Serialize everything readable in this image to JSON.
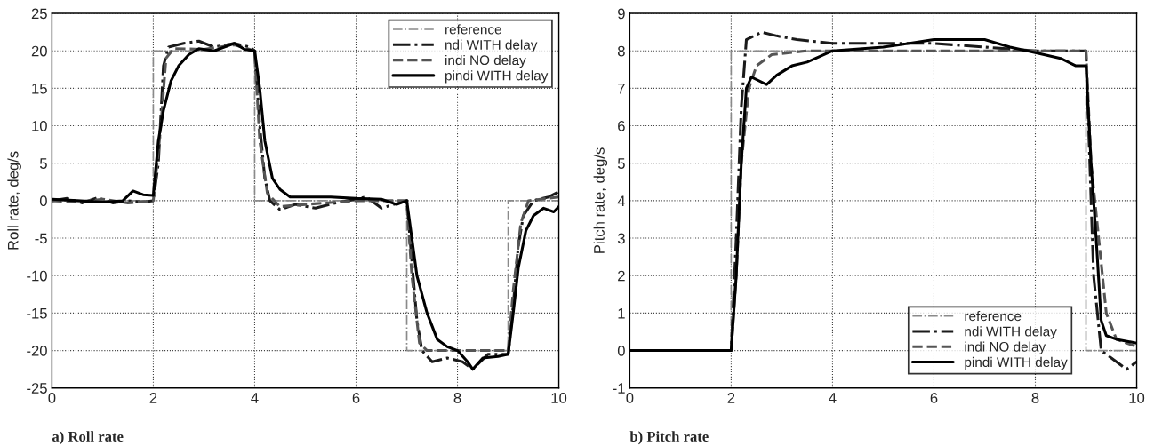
{
  "chart_data": [
    {
      "type": "line",
      "title": "a) Roll rate",
      "ylabel": "Roll rate, deg/s",
      "xlim": [
        0,
        10
      ],
      "ylim": [
        -25,
        25
      ],
      "xticks": [
        0,
        2,
        4,
        6,
        8,
        10
      ],
      "yticks": [
        -25,
        -20,
        -15,
        -10,
        -5,
        0,
        5,
        10,
        15,
        20,
        25
      ],
      "grid": true,
      "legend": "top right",
      "series": [
        {
          "name": "reference",
          "color": "#8a8a8a",
          "line_style": "dashdot",
          "x": [
            0,
            2,
            2,
            4,
            4,
            7,
            7,
            9,
            9,
            10
          ],
          "values": [
            0,
            0,
            20,
            20,
            0,
            0,
            -20,
            -20,
            0,
            0
          ]
        },
        {
          "name": "ndi WITH delay",
          "color": "#1a1a1a",
          "line_style": "dashdot",
          "x": [
            0,
            0.3,
            0.6,
            0.9,
            1.2,
            1.5,
            1.8,
            2.0,
            2.1,
            2.2,
            2.3,
            2.6,
            2.9,
            3.2,
            3.6,
            3.9,
            4.0,
            4.1,
            4.2,
            4.3,
            4.5,
            4.8,
            5.2,
            5.6,
            6.2,
            6.5,
            7.0,
            7.1,
            7.2,
            7.3,
            7.5,
            7.8,
            8.1,
            8.3,
            8.6,
            9.0,
            9.1,
            9.2,
            9.3,
            9.5,
            9.8,
            10
          ],
          "values": [
            0,
            0.3,
            -0.3,
            0.4,
            -0.3,
            0,
            -0.2,
            0,
            5,
            18,
            20.5,
            21,
            21.3,
            20.5,
            21,
            20.5,
            20,
            10,
            3,
            0,
            -1.2,
            -0.5,
            -1,
            -0.3,
            0.5,
            -1,
            0,
            -8,
            -16,
            -20,
            -21.5,
            -21,
            -21.5,
            -22.5,
            -20.5,
            -20.5,
            -14,
            -6,
            -2,
            0,
            0.5,
            1.2
          ]
        },
        {
          "name": "indi NO delay",
          "color": "#555555",
          "line_style": "dashed",
          "x": [
            0,
            0.5,
            1.0,
            1.5,
            2.0,
            2.15,
            2.25,
            2.4,
            3.0,
            3.6,
            4.0,
            4.1,
            4.25,
            4.5,
            5.0,
            6.0,
            7.0,
            7.1,
            7.25,
            7.4,
            8.0,
            9.0,
            9.1,
            9.25,
            9.4,
            10
          ],
          "values": [
            0,
            -0.2,
            0.2,
            -0.3,
            0,
            10,
            19,
            20.3,
            20.2,
            20.8,
            20,
            8,
            1,
            -0.8,
            -0.5,
            0,
            0,
            -10,
            -19,
            -20,
            -20,
            -20,
            -12,
            -3,
            0,
            0.5
          ]
        },
        {
          "name": "pindi WITH delay",
          "color": "#000000",
          "line_style": "solid",
          "x": [
            0,
            0.5,
            1.0,
            1.4,
            1.6,
            1.8,
            2.0,
            2.1,
            2.2,
            2.35,
            2.5,
            2.7,
            2.9,
            3.2,
            3.6,
            3.8,
            4.0,
            4.1,
            4.2,
            4.35,
            4.5,
            4.7,
            5.0,
            5.5,
            6.0,
            6.5,
            6.8,
            7.0,
            7.1,
            7.2,
            7.4,
            7.6,
            7.8,
            8.0,
            8.2,
            8.3,
            8.5,
            8.8,
            9.0,
            9.1,
            9.2,
            9.35,
            9.5,
            9.7,
            9.9,
            10
          ],
          "values": [
            0.2,
            0,
            -0.2,
            0,
            1.3,
            0.8,
            0.7,
            8,
            12,
            16,
            18,
            19.5,
            20.3,
            20,
            21,
            20.2,
            20,
            15,
            8,
            3,
            1.5,
            0.5,
            0.5,
            0.5,
            0.3,
            0.2,
            -0.5,
            0,
            -5,
            -10,
            -15,
            -18.5,
            -19.5,
            -20,
            -21.5,
            -22.5,
            -21,
            -20.8,
            -20.5,
            -15,
            -9,
            -4,
            -2,
            -1,
            -1.5,
            -0.8
          ]
        }
      ]
    },
    {
      "type": "line",
      "title": "b) Pitch rate",
      "ylabel": "Pitch rate, deg/s",
      "xlim": [
        0,
        10
      ],
      "ylim": [
        -1,
        9
      ],
      "xticks": [
        0,
        2,
        4,
        6,
        8,
        10
      ],
      "yticks": [
        -1,
        0,
        1,
        2,
        3,
        4,
        5,
        6,
        7,
        8,
        9
      ],
      "grid": true,
      "legend": "bottom right",
      "series": [
        {
          "name": "reference",
          "color": "#8a8a8a",
          "line_style": "dashdot",
          "x": [
            0,
            2,
            2,
            9,
            9,
            10
          ],
          "values": [
            0,
            0,
            8,
            8,
            0,
            0
          ]
        },
        {
          "name": "ndi WITH delay",
          "color": "#1a1a1a",
          "line_style": "dashdot",
          "x": [
            0,
            1,
            2,
            2.1,
            2.2,
            2.3,
            2.6,
            2.9,
            3.3,
            4,
            5,
            6,
            7,
            8,
            9,
            9.05,
            9.15,
            9.3,
            9.5,
            9.8,
            10
          ],
          "values": [
            0,
            0,
            0,
            3,
            6.5,
            8.3,
            8.5,
            8.4,
            8.3,
            8.2,
            8.2,
            8.2,
            8.1,
            8,
            8,
            6,
            2,
            0,
            -0.2,
            -0.5,
            -0.3
          ]
        },
        {
          "name": "indi NO delay",
          "color": "#555555",
          "line_style": "dashed",
          "x": [
            0,
            1,
            2,
            2.1,
            2.2,
            2.35,
            2.5,
            2.8,
            3.5,
            4,
            6,
            8,
            9,
            9.1,
            9.25,
            9.4,
            9.6,
            10
          ],
          "values": [
            0,
            0,
            0,
            2,
            5,
            7,
            7.6,
            7.9,
            8,
            8,
            8,
            8,
            8,
            5,
            3,
            1,
            0.3,
            0.1
          ]
        },
        {
          "name": "pindi WITH delay",
          "color": "#000000",
          "line_style": "solid",
          "x": [
            0,
            1,
            2,
            2.1,
            2.2,
            2.3,
            2.4,
            2.7,
            2.9,
            3.2,
            3.5,
            4.0,
            5,
            6,
            6.5,
            7,
            7.5,
            8,
            8.5,
            8.8,
            9.0,
            9.1,
            9.2,
            9.3,
            9.4,
            9.6,
            10
          ],
          "values": [
            0,
            0,
            0,
            2,
            5,
            7,
            7.3,
            7.1,
            7.35,
            7.6,
            7.7,
            8.0,
            8.1,
            8.3,
            8.3,
            8.3,
            8.1,
            7.95,
            7.8,
            7.6,
            7.6,
            5,
            3,
            0.8,
            0.4,
            0.3,
            0.2
          ]
        }
      ]
    }
  ]
}
